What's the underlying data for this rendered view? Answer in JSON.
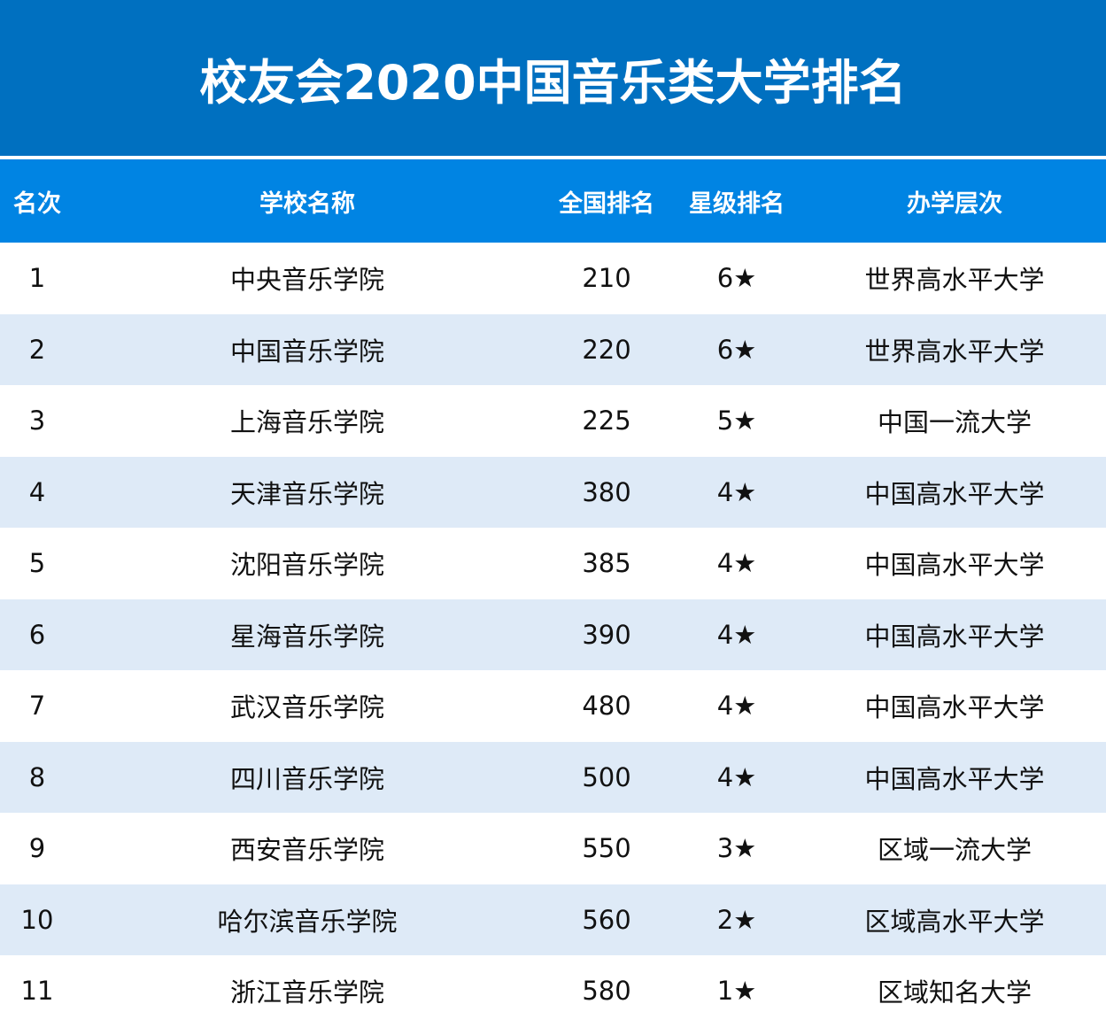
{
  "title": "校友会2020中国音乐类大学排名",
  "headers": {
    "rank": "名次",
    "name": "学校名称",
    "national": "全国排名",
    "star": "星级排名",
    "level": "办学层次"
  },
  "rows": [
    {
      "rank": "1",
      "name": "中央音乐学院",
      "national": "210",
      "star": "6★",
      "level": "世界高水平大学"
    },
    {
      "rank": "2",
      "name": "中国音乐学院",
      "national": "220",
      "star": "6★",
      "level": "世界高水平大学"
    },
    {
      "rank": "3",
      "name": "上海音乐学院",
      "national": "225",
      "star": "5★",
      "level": "中国一流大学"
    },
    {
      "rank": "4",
      "name": "天津音乐学院",
      "national": "380",
      "star": "4★",
      "level": "中国高水平大学"
    },
    {
      "rank": "5",
      "name": "沈阳音乐学院",
      "national": "385",
      "star": "4★",
      "level": "中国高水平大学"
    },
    {
      "rank": "6",
      "name": "星海音乐学院",
      "national": "390",
      "star": "4★",
      "level": "中国高水平大学"
    },
    {
      "rank": "7",
      "name": "武汉音乐学院",
      "national": "480",
      "star": "4★",
      "level": "中国高水平大学"
    },
    {
      "rank": "8",
      "name": "四川音乐学院",
      "national": "500",
      "star": "4★",
      "level": "中国高水平大学"
    },
    {
      "rank": "9",
      "name": "西安音乐学院",
      "national": "550",
      "star": "3★",
      "level": "区域一流大学"
    },
    {
      "rank": "10",
      "name": "哈尔滨音乐学院",
      "national": "560",
      "star": "2★",
      "level": "区域高水平大学"
    },
    {
      "rank": "11",
      "name": "浙江音乐学院",
      "national": "580",
      "star": "1★",
      "level": "区域知名大学"
    }
  ],
  "colors": {
    "title_bg": "#0070c0",
    "header_bg": "#0084e3",
    "alt_row_bg": "#deeaf7"
  }
}
